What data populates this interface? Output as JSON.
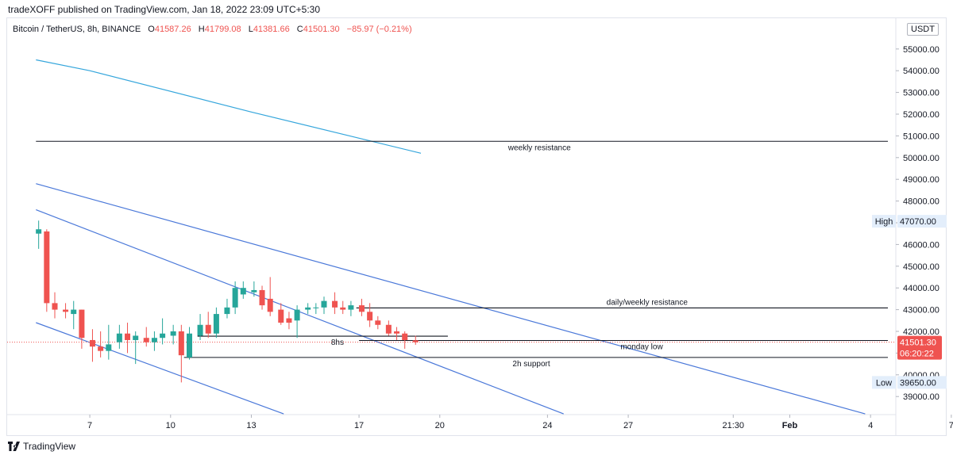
{
  "header": {
    "published": "tradeXOFF published on TradingView.com, Jan 18, 2022 23:09 UTC+5:30"
  },
  "legend": {
    "symbol": "Bitcoin / TetherUS, 8h, BINANCE",
    "open_label": "O",
    "open": "41587.26",
    "high_label": "H",
    "high": "41799.08",
    "low_label": "L",
    "low": "41381.66",
    "close_label": "C",
    "close": "41501.30",
    "change": "−85.97 (−0.21%)"
  },
  "currency_button": "USDT",
  "footer": {
    "brand": "TradingView",
    "logo_icon": "tradingview-logo-icon"
  },
  "colors": {
    "up": "#26a69a",
    "down": "#ef5350",
    "channel": "#4a78d9",
    "ma": "#35a6dc",
    "level": "#131722"
  },
  "chart_data": {
    "type": "candlestick",
    "timeframe": "8h",
    "ylim": [
      38000,
      56000
    ],
    "y_ticks": [
      39000,
      40000,
      41000,
      42000,
      43000,
      44000,
      45000,
      46000,
      47000,
      48000,
      49000,
      50000,
      51000,
      52000,
      53000,
      54000,
      55000
    ],
    "y_tick_labels": [
      "39000.00",
      "40000.00",
      "41000.00",
      "42000.00",
      "43000.00",
      "44000.00",
      "45000.00",
      "46000.00",
      "",
      "48000.00",
      "49000.00",
      "50000.00",
      "51000.00",
      "52000.00",
      "53000.00",
      "54000.00",
      "55000.00"
    ],
    "x_ticks": [
      {
        "day": 7,
        "label": "7"
      },
      {
        "day": 10,
        "label": "10"
      },
      {
        "day": 13,
        "label": "13"
      },
      {
        "day": 17,
        "label": "17"
      },
      {
        "day": 20,
        "label": "20"
      },
      {
        "day": 24,
        "label": "24"
      },
      {
        "day": 27,
        "label": "27"
      },
      {
        "day": 30.9,
        "label": "21:30"
      },
      {
        "day": 33,
        "label": "Feb"
      },
      {
        "day": 36,
        "label": "4"
      },
      {
        "day": 39,
        "label": "7"
      }
    ],
    "candles": [
      {
        "t": 5.1,
        "o": 46500,
        "h": 47100,
        "l": 45800,
        "c": 46700
      },
      {
        "t": 5.4,
        "o": 46600,
        "h": 46700,
        "l": 42900,
        "c": 43300
      },
      {
        "t": 5.7,
        "o": 43300,
        "h": 43800,
        "l": 42600,
        "c": 43000
      },
      {
        "t": 6.1,
        "o": 43000,
        "h": 43300,
        "l": 42600,
        "c": 42900
      },
      {
        "t": 6.4,
        "o": 42800,
        "h": 43400,
        "l": 42100,
        "c": 43000
      },
      {
        "t": 6.7,
        "o": 43000,
        "h": 43000,
        "l": 41200,
        "c": 41700
      },
      {
        "t": 7.1,
        "o": 41600,
        "h": 42100,
        "l": 40600,
        "c": 41300
      },
      {
        "t": 7.4,
        "o": 41300,
        "h": 42000,
        "l": 40800,
        "c": 41100
      },
      {
        "t": 7.7,
        "o": 41100,
        "h": 42300,
        "l": 40700,
        "c": 41400
      },
      {
        "t": 8.1,
        "o": 41500,
        "h": 42300,
        "l": 41200,
        "c": 41900
      },
      {
        "t": 8.4,
        "o": 41900,
        "h": 42400,
        "l": 41000,
        "c": 41600
      },
      {
        "t": 8.7,
        "o": 41600,
        "h": 42000,
        "l": 40500,
        "c": 41800
      },
      {
        "t": 9.1,
        "o": 41700,
        "h": 42200,
        "l": 41300,
        "c": 41500
      },
      {
        "t": 9.4,
        "o": 41500,
        "h": 42000,
        "l": 41100,
        "c": 41700
      },
      {
        "t": 9.7,
        "o": 41700,
        "h": 42600,
        "l": 41400,
        "c": 41900
      },
      {
        "t": 10.1,
        "o": 41800,
        "h": 42300,
        "l": 41400,
        "c": 42000
      },
      {
        "t": 10.4,
        "o": 42000,
        "h": 42300,
        "l": 39650,
        "c": 40900
      },
      {
        "t": 10.7,
        "o": 40800,
        "h": 42200,
        "l": 40700,
        "c": 41900
      },
      {
        "t": 11.1,
        "o": 41800,
        "h": 42800,
        "l": 41600,
        "c": 42300
      },
      {
        "t": 11.4,
        "o": 42300,
        "h": 42900,
        "l": 41700,
        "c": 41900
      },
      {
        "t": 11.7,
        "o": 41900,
        "h": 43100,
        "l": 41700,
        "c": 42800
      },
      {
        "t": 12.1,
        "o": 42800,
        "h": 43500,
        "l": 42600,
        "c": 43100
      },
      {
        "t": 12.4,
        "o": 43100,
        "h": 44300,
        "l": 42800,
        "c": 44000
      },
      {
        "t": 12.7,
        "o": 43700,
        "h": 44300,
        "l": 43500,
        "c": 44000
      },
      {
        "t": 13.1,
        "o": 43800,
        "h": 44300,
        "l": 43600,
        "c": 43900
      },
      {
        "t": 13.4,
        "o": 43900,
        "h": 44100,
        "l": 43000,
        "c": 43200
      },
      {
        "t": 13.7,
        "o": 43500,
        "h": 44500,
        "l": 42700,
        "c": 42900
      },
      {
        "t": 14.1,
        "o": 43000,
        "h": 43300,
        "l": 42300,
        "c": 42400
      },
      {
        "t": 14.4,
        "o": 42600,
        "h": 42900,
        "l": 42100,
        "c": 42400
      },
      {
        "t": 14.7,
        "o": 42500,
        "h": 43200,
        "l": 41700,
        "c": 43000
      },
      {
        "t": 15.1,
        "o": 43000,
        "h": 43300,
        "l": 42800,
        "c": 43100
      },
      {
        "t": 15.4,
        "o": 43100,
        "h": 43300,
        "l": 42800,
        "c": 43100
      },
      {
        "t": 15.7,
        "o": 43100,
        "h": 43600,
        "l": 42800,
        "c": 43400
      },
      {
        "t": 16.1,
        "o": 43400,
        "h": 43800,
        "l": 42800,
        "c": 43100
      },
      {
        "t": 16.4,
        "o": 43100,
        "h": 43400,
        "l": 42800,
        "c": 43000
      },
      {
        "t": 16.7,
        "o": 43000,
        "h": 43400,
        "l": 42700,
        "c": 43200
      },
      {
        "t": 17.1,
        "o": 43200,
        "h": 43500,
        "l": 42700,
        "c": 42900
      },
      {
        "t": 17.4,
        "o": 42900,
        "h": 43300,
        "l": 42200,
        "c": 42500
      },
      {
        "t": 17.7,
        "o": 42500,
        "h": 42700,
        "l": 42100,
        "c": 42300
      },
      {
        "t": 18.1,
        "o": 42300,
        "h": 42500,
        "l": 41800,
        "c": 41900
      },
      {
        "t": 18.4,
        "o": 42000,
        "h": 42200,
        "l": 41600,
        "c": 41900
      },
      {
        "t": 18.7,
        "o": 41900,
        "h": 42000,
        "l": 41200,
        "c": 41600
      },
      {
        "t": 19.1,
        "o": 41587.26,
        "h": 41799.08,
        "l": 41381.66,
        "c": 41501.3
      }
    ],
    "trendlines": [
      {
        "kind": "ma",
        "points": [
          [
            5.0,
            54500
          ],
          [
            7.0,
            54000
          ],
          [
            13.0,
            52100
          ],
          [
            19.3,
            50200
          ]
        ]
      },
      {
        "kind": "channel",
        "points": [
          [
            5.0,
            48800
          ],
          [
            35.8,
            38200
          ]
        ]
      },
      {
        "kind": "channel",
        "points": [
          [
            5.0,
            47600
          ],
          [
            24.6,
            38200
          ]
        ]
      },
      {
        "kind": "channel",
        "points": [
          [
            5.0,
            42400
          ],
          [
            14.2,
            38200
          ]
        ]
      }
    ],
    "levels": [
      {
        "label": "weekly resistance",
        "y": 50750,
        "x0": 5.0,
        "x1": 39.0,
        "label_x": 23.7
      },
      {
        "label": "daily/weekly resistance",
        "y": 43080,
        "x0": 16.9,
        "x1": 39.0,
        "label_x": 27.7
      },
      {
        "label": "8hs",
        "y": 41780,
        "x0": 11.0,
        "x1": 20.3,
        "label_x": 16.2
      },
      {
        "label": "monday low",
        "y": 41580,
        "x0": 17.0,
        "x1": 39.0,
        "label_x": 27.5
      },
      {
        "label": "2h support",
        "y": 40800,
        "x0": 10.5,
        "x1": 39.0,
        "label_x": 23.4
      }
    ],
    "price_line": 41501.3,
    "markers": {
      "high_label": "High",
      "high_value": "47070.00",
      "high_y": 47070,
      "low_label": "Low",
      "low_value": "39650.00",
      "low_y": 39650,
      "last_value": "41501.30",
      "countdown": "06:20:22"
    }
  }
}
